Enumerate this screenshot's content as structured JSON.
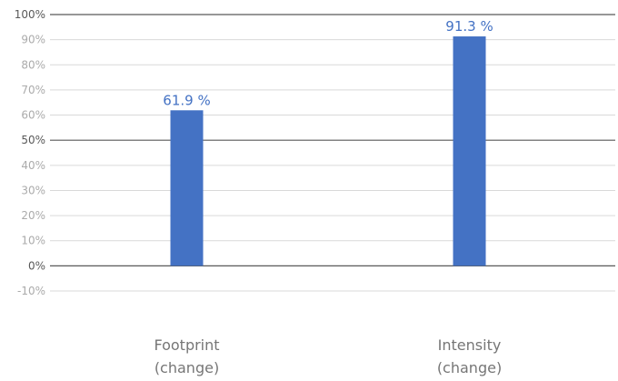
{
  "chart_data": {
    "type": "bar",
    "categories": [
      [
        "Footprint",
        "(change)"
      ],
      [
        "Intensity",
        "(change)"
      ]
    ],
    "values": [
      61.9,
      91.3
    ],
    "data_labels": [
      "61.9 %",
      "91.3 %"
    ],
    "yticks": [
      {
        "value": 100,
        "label": "100%"
      },
      {
        "value": 90,
        "label": "90%"
      },
      {
        "value": 80,
        "label": "80%"
      },
      {
        "value": 70,
        "label": "70%"
      },
      {
        "value": 60,
        "label": "60%"
      },
      {
        "value": 50,
        "label": "50%"
      },
      {
        "value": 40,
        "label": "40%"
      },
      {
        "value": 30,
        "label": "30%"
      },
      {
        "value": 20,
        "label": "20%"
      },
      {
        "value": 10,
        "label": "10%"
      },
      {
        "value": 0,
        "label": "0%"
      },
      {
        "value": -10,
        "label": "-10%"
      }
    ],
    "ylim": [
      -10,
      100
    ],
    "grid": true,
    "legend": "none",
    "colors": {
      "bar": "#4472C4",
      "data_label": "#4472C4",
      "gridline": "#D9D9D9",
      "major_line": "#595959",
      "tick_label_light": "#ABABAB",
      "tick_label_dark": "#595959",
      "category_label": "#767676"
    }
  }
}
